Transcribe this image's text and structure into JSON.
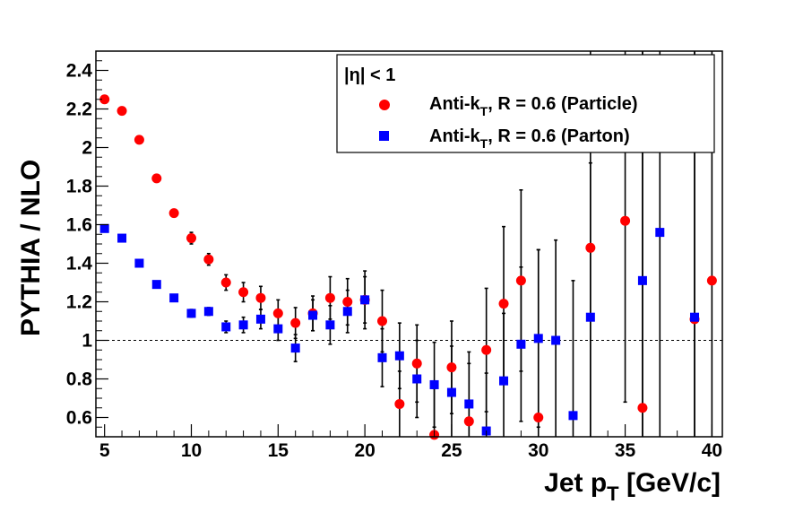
{
  "chart_data": {
    "type": "scatter",
    "title": "",
    "xlabel": "Jet p",
    "xlabel_sub": "T",
    "xlabel_unit": " [GeV/c]",
    "ylabel": "PYTHIA / NLO",
    "xlim": [
      4.5,
      40.6
    ],
    "ylim": [
      0.5,
      2.5
    ],
    "xticks": [
      5,
      10,
      15,
      20,
      25,
      30,
      35,
      40
    ],
    "yticks": [
      0.6,
      0.8,
      1,
      1.2,
      1.4,
      1.6,
      1.8,
      2,
      2.2,
      2.4
    ],
    "reference_line": 1,
    "grid": false,
    "legend": {
      "placement": "top-right",
      "header": "|η| < 1",
      "entries": [
        "Anti-k_T, R = 0.6 (Particle)",
        "Anti-k_T, R = 0.6 (Parton)"
      ]
    },
    "series": [
      {
        "name": "Anti-k_T, R = 0.6 (Particle)",
        "color": "#ff0000",
        "marker": "circle",
        "points": [
          {
            "x": 5,
            "y": 2.25,
            "err": 0.01
          },
          {
            "x": 6,
            "y": 2.19,
            "err": 0.01
          },
          {
            "x": 7,
            "y": 2.04,
            "err": 0.01
          },
          {
            "x": 8,
            "y": 1.84,
            "err": 0.01
          },
          {
            "x": 9,
            "y": 1.66,
            "err": 0.01
          },
          {
            "x": 10,
            "y": 1.53,
            "err": 0.03
          },
          {
            "x": 11,
            "y": 1.42,
            "err": 0.03
          },
          {
            "x": 12,
            "y": 1.3,
            "err": 0.04
          },
          {
            "x": 13,
            "y": 1.25,
            "err": 0.05
          },
          {
            "x": 14,
            "y": 1.22,
            "err": 0.06
          },
          {
            "x": 15,
            "y": 1.14,
            "err": 0.07
          },
          {
            "x": 16,
            "y": 1.09,
            "err": 0.08
          },
          {
            "x": 17,
            "y": 1.14,
            "err": 0.09
          },
          {
            "x": 18,
            "y": 1.22,
            "err": 0.11
          },
          {
            "x": 19,
            "y": 1.2,
            "err": 0.12
          },
          {
            "x": 20,
            "y": 1.21,
            "err": 0.15
          },
          {
            "x": 21,
            "y": 1.1,
            "err": 0.16
          },
          {
            "x": 22,
            "y": 0.67,
            "err": 0.17
          },
          {
            "x": 23,
            "y": 0.88,
            "err": 0.2
          },
          {
            "x": 24,
            "y": 0.51,
            "err": 0.24
          },
          {
            "x": 25,
            "y": 0.86,
            "err": 0.24
          },
          {
            "x": 26,
            "y": 0.58,
            "err": 0.3
          },
          {
            "x": 27,
            "y": 0.95,
            "err": 0.32
          },
          {
            "x": 28,
            "y": 1.19,
            "err": 0.4
          },
          {
            "x": 29,
            "y": 1.31,
            "err": 0.47
          },
          {
            "x": 30,
            "y": 0.6,
            "err": 0.87
          },
          {
            "x": 33,
            "y": 1.48,
            "err": 1.1
          },
          {
            "x": 35,
            "y": 1.62,
            "err": 0.94
          },
          {
            "x": 36,
            "y": 0.65,
            "err": 1.9
          },
          {
            "x": 39,
            "y": 1.11,
            "err": 1.5
          },
          {
            "x": 40,
            "y": 1.31,
            "err": 1.3
          }
        ]
      },
      {
        "name": "Anti-k_T, R = 0.6 (Parton)",
        "color": "#0000ff",
        "marker": "square",
        "points": [
          {
            "x": 5,
            "y": 1.58,
            "err": 0.01
          },
          {
            "x": 6,
            "y": 1.53,
            "err": 0.01
          },
          {
            "x": 7,
            "y": 1.4,
            "err": 0.01
          },
          {
            "x": 8,
            "y": 1.29,
            "err": 0.01
          },
          {
            "x": 9,
            "y": 1.22,
            "err": 0.01
          },
          {
            "x": 10,
            "y": 1.14,
            "err": 0.02
          },
          {
            "x": 11,
            "y": 1.15,
            "err": 0.02
          },
          {
            "x": 12,
            "y": 1.07,
            "err": 0.03
          },
          {
            "x": 13,
            "y": 1.08,
            "err": 0.04
          },
          {
            "x": 14,
            "y": 1.11,
            "err": 0.05
          },
          {
            "x": 15,
            "y": 1.06,
            "err": 0.06
          },
          {
            "x": 16,
            "y": 0.96,
            "err": 0.07
          },
          {
            "x": 17,
            "y": 1.13,
            "err": 0.08
          },
          {
            "x": 18,
            "y": 1.08,
            "err": 0.1
          },
          {
            "x": 19,
            "y": 1.15,
            "err": 0.11
          },
          {
            "x": 20,
            "y": 1.21,
            "err": 0.12
          },
          {
            "x": 21,
            "y": 0.91,
            "err": 0.15
          },
          {
            "x": 22,
            "y": 0.92,
            "err": 0.17
          },
          {
            "x": 23,
            "y": 0.8,
            "err": 0.2
          },
          {
            "x": 24,
            "y": 0.77,
            "err": 0.22
          },
          {
            "x": 25,
            "y": 0.73,
            "err": 0.24
          },
          {
            "x": 26,
            "y": 0.67,
            "err": 0.27
          },
          {
            "x": 27,
            "y": 0.53,
            "err": 0.3
          },
          {
            "x": 28,
            "y": 0.79,
            "err": 0.35
          },
          {
            "x": 29,
            "y": 0.98,
            "err": 0.4
          },
          {
            "x": 30,
            "y": 1.01,
            "err": 0.46
          },
          {
            "x": 31,
            "y": 1.0,
            "err": 0.52
          },
          {
            "x": 32,
            "y": 0.61,
            "err": 0.7
          },
          {
            "x": 33,
            "y": 1.12,
            "err": 0.8
          },
          {
            "x": 36,
            "y": 1.31,
            "err": 1.2
          },
          {
            "x": 37,
            "y": 1.56,
            "err": 1.2
          },
          {
            "x": 39,
            "y": 1.12,
            "err": 1.4
          }
        ]
      }
    ]
  }
}
